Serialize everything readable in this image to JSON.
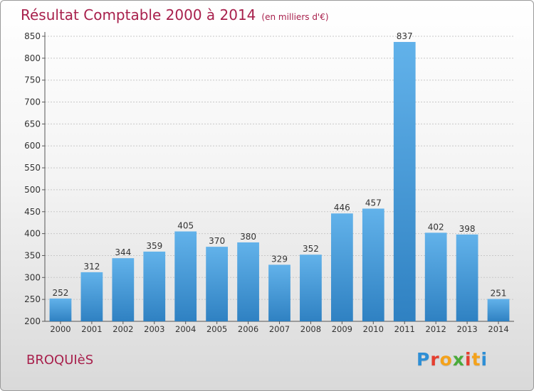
{
  "title": "Résultat Comptable 2000 à 2014",
  "subtitle": "(en milliers d'€)",
  "town": "BROQUIèS",
  "logo": {
    "letters": [
      "P",
      "r",
      "o",
      "x",
      "i",
      "t",
      "i"
    ],
    "colors": [
      "#2e8fd6",
      "#e53e2f",
      "#f4a21b",
      "#4aab3a",
      "#e53e2f",
      "#f4a21b",
      "#2e8fd6"
    ]
  },
  "colors": {
    "bar_top": "#62b2ea",
    "bar_bottom": "#2f81c2",
    "title": "#a8204c"
  },
  "chart_data": {
    "type": "bar",
    "title": "Résultat Comptable 2000 à 2014",
    "subtitle": "(en milliers d'€)",
    "categories": [
      "2000",
      "2001",
      "2002",
      "2003",
      "2004",
      "2005",
      "2006",
      "2007",
      "2008",
      "2009",
      "2010",
      "2011",
      "2012",
      "2013",
      "2014"
    ],
    "values": [
      252,
      312,
      344,
      359,
      405,
      370,
      380,
      329,
      352,
      446,
      457,
      837,
      402,
      398,
      251
    ],
    "ylim": [
      200,
      850
    ],
    "yticks": [
      200,
      250,
      300,
      350,
      400,
      450,
      500,
      550,
      600,
      650,
      700,
      750,
      800,
      850
    ],
    "grid": true,
    "xlabel": "",
    "ylabel": ""
  }
}
